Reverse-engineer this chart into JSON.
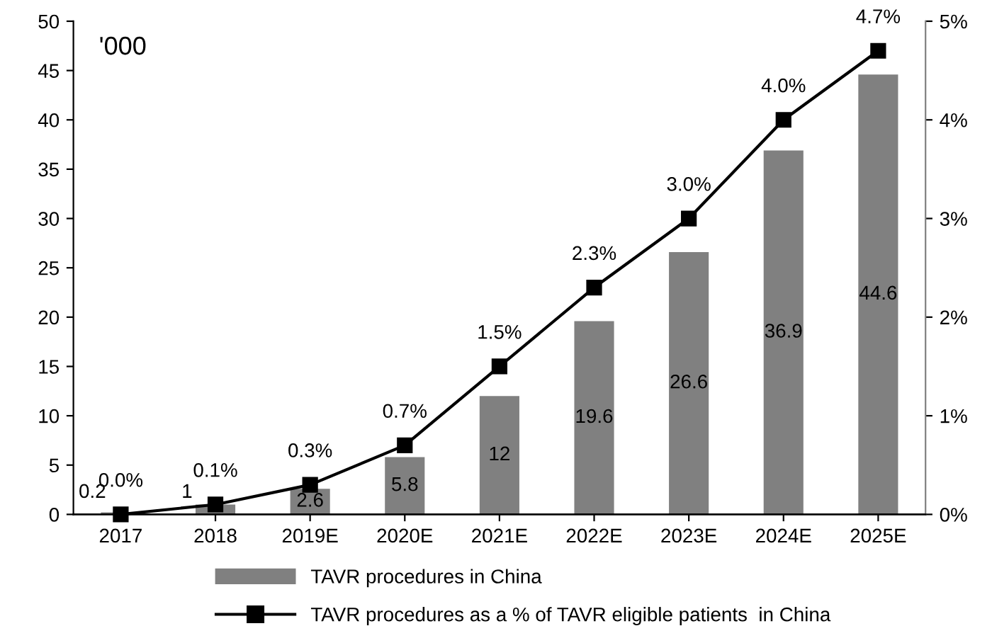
{
  "chart_data": {
    "type": "bar",
    "categories": [
      "2017",
      "2018",
      "2019E",
      "2020E",
      "2021E",
      "2022E",
      "2023E",
      "2024E",
      "2025E"
    ],
    "series": [
      {
        "name": "TAVR procedures in China",
        "color": "#808080",
        "values": [
          0.2,
          1,
          2.6,
          5.8,
          12,
          19.6,
          26.6,
          36.9,
          44.6
        ],
        "value_labels": [
          "0.2",
          "1",
          "2.6",
          "5.8",
          "12",
          "19.6",
          "26.6",
          "36.9",
          "44.6"
        ]
      },
      {
        "name": "TAVR procedures as a % of TAVR eligible patients  in China",
        "type": "line",
        "axis": "y2",
        "color": "#000000",
        "marker": "square",
        "line_style": "solid",
        "values": [
          0.0,
          0.1,
          0.3,
          0.7,
          1.5,
          2.3,
          3.0,
          4.0,
          4.7
        ],
        "value_labels": [
          "0.0%",
          "0.1%",
          "0.3%",
          "0.7%",
          "1.5%",
          "2.3%",
          "3.0%",
          "4.0%",
          "4.7%"
        ]
      }
    ],
    "ylim": [
      0,
      50
    ],
    "yticks": [
      0,
      5,
      10,
      15,
      20,
      25,
      30,
      35,
      40,
      45,
      50
    ],
    "y2lim": [
      0,
      5
    ],
    "y2ticks": [
      {
        "value": 0,
        "label": "0%"
      },
      {
        "value": 1,
        "label": "1%"
      },
      {
        "value": 2,
        "label": "2%"
      },
      {
        "value": 3,
        "label": "3%"
      },
      {
        "value": 4,
        "label": "4%"
      },
      {
        "value": 5,
        "label": "5%"
      }
    ],
    "annotations": [
      "'000"
    ],
    "legend": "bottom",
    "grid": false
  }
}
